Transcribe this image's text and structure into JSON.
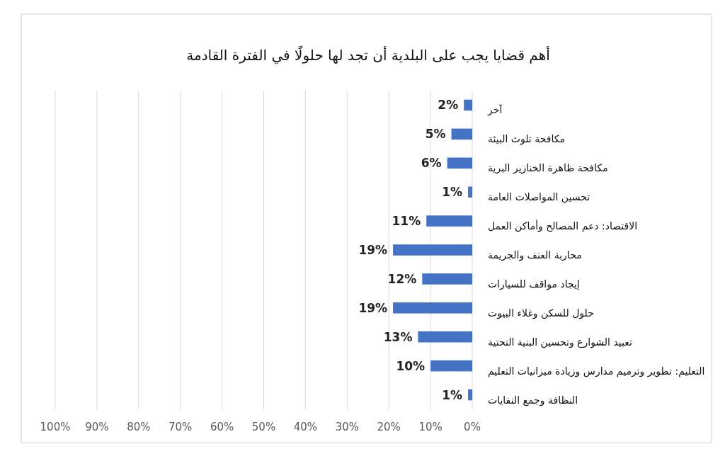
{
  "chart_data": {
    "type": "bar",
    "orientation": "horizontal",
    "title": "أهم قضايا يجب على البلدية أن تجد لها حلولًا في الفترة القادمة",
    "categories": [
      "آخر",
      "مكافحة تلوث البيئة",
      "مكافحة ظاهرة الخنازير البرية",
      "تحسين المواصلات العامة",
      "الاقتصاد: دعم المصالح وأماكن العمل",
      "محاربة العنف والجريمة",
      "إيجاد مواقف للسيارات",
      "حلول للسكن وغلاء البيوت",
      "تعبيد الشوارع وتحسين البنية التحتية",
      "التعليم: تطوير وترميم مدارس وزيادة ميزانيات التعليم",
      "النظافة وجمع النفايات"
    ],
    "values": [
      2,
      5,
      6,
      1,
      11,
      19,
      12,
      19,
      13,
      10,
      1
    ],
    "value_labels": [
      "2%",
      "5%",
      "6%",
      "1%",
      "11%",
      "19%",
      "12%",
      "19%",
      "13%",
      "10%",
      "1%"
    ],
    "color": "#4472c4",
    "xlim": [
      100,
      0
    ],
    "xticks": [
      {
        "value": 100,
        "label": "100%"
      },
      {
        "value": 90,
        "label": "90%"
      },
      {
        "value": 80,
        "label": "80%"
      },
      {
        "value": 70,
        "label": "70%"
      },
      {
        "value": 60,
        "label": "60%"
      },
      {
        "value": 50,
        "label": "50%"
      },
      {
        "value": 40,
        "label": "40%"
      },
      {
        "value": 30,
        "label": "30%"
      },
      {
        "value": 20,
        "label": "20%"
      },
      {
        "value": 10,
        "label": "10%"
      },
      {
        "value": 0,
        "label": "0%"
      }
    ],
    "grid": "x"
  }
}
